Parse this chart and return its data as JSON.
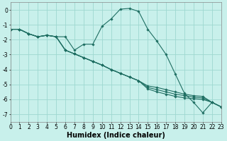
{
  "xlabel": "Humidex (Indice chaleur)",
  "bg_color": "#c8f0eb",
  "grid_color": "#9dd8d0",
  "line_color": "#1e6e62",
  "series": [
    {
      "x": [
        0,
        1,
        2,
        3,
        4,
        5,
        6,
        7,
        8,
        9,
        10,
        11,
        12,
        13,
        14,
        15,
        16,
        17,
        18,
        19,
        20,
        21,
        22,
        23
      ],
      "y": [
        -1.3,
        -1.3,
        -1.6,
        -1.8,
        -1.7,
        -1.8,
        -1.8,
        -2.7,
        -2.3,
        -2.3,
        -1.1,
        -0.6,
        0.05,
        0.1,
        -0.1,
        -1.3,
        -2.1,
        -3.0,
        -4.3,
        -5.6,
        -6.2,
        -6.9,
        -6.2,
        -6.5
      ]
    },
    {
      "x": [
        0,
        1,
        2,
        3,
        4,
        5,
        6,
        7,
        8,
        9,
        10,
        11,
        12,
        13,
        14,
        15,
        16,
        17,
        18,
        19,
        20,
        21,
        22,
        23
      ],
      "y": [
        -1.3,
        -1.3,
        -1.6,
        -1.8,
        -1.7,
        -1.8,
        -2.7,
        -2.95,
        -3.2,
        -3.45,
        -3.7,
        -4.0,
        -4.25,
        -4.5,
        -4.75,
        -5.1,
        -5.2,
        -5.35,
        -5.5,
        -5.65,
        -5.75,
        -5.8,
        -6.2,
        -6.5
      ]
    },
    {
      "x": [
        0,
        1,
        2,
        3,
        4,
        5,
        6,
        7,
        8,
        9,
        10,
        11,
        12,
        13,
        14,
        15,
        16,
        17,
        18,
        19,
        20,
        21,
        22,
        23
      ],
      "y": [
        -1.3,
        -1.3,
        -1.6,
        -1.8,
        -1.7,
        -1.8,
        -2.7,
        -2.95,
        -3.2,
        -3.45,
        -3.7,
        -4.0,
        -4.25,
        -4.5,
        -4.75,
        -5.2,
        -5.35,
        -5.5,
        -5.65,
        -5.75,
        -5.85,
        -5.9,
        -6.2,
        -6.5
      ]
    },
    {
      "x": [
        0,
        1,
        2,
        3,
        4,
        5,
        6,
        7,
        8,
        9,
        10,
        11,
        12,
        13,
        14,
        15,
        16,
        17,
        18,
        19,
        20,
        21,
        22,
        23
      ],
      "y": [
        -1.3,
        -1.3,
        -1.6,
        -1.8,
        -1.7,
        -1.8,
        -2.7,
        -2.95,
        -3.2,
        -3.45,
        -3.7,
        -4.0,
        -4.25,
        -4.5,
        -4.75,
        -5.3,
        -5.5,
        -5.65,
        -5.8,
        -5.9,
        -5.95,
        -6.0,
        -6.2,
        -6.5
      ]
    }
  ],
  "xlim": [
    0,
    23
  ],
  "ylim": [
    -7.5,
    0.5
  ],
  "ytick_labels": [
    "0",
    "-1",
    "-2",
    "-3",
    "-4",
    "-5",
    "-6",
    "-7"
  ],
  "ytick_vals": [
    0,
    -1,
    -2,
    -3,
    -4,
    -5,
    -6,
    -7
  ],
  "xtick_vals": [
    0,
    1,
    2,
    3,
    4,
    5,
    6,
    7,
    8,
    9,
    10,
    11,
    12,
    13,
    14,
    15,
    16,
    17,
    18,
    19,
    20,
    21,
    22,
    23
  ],
  "tick_fontsize": 5.5,
  "xlabel_fontsize": 7.0,
  "marker": "D",
  "marker_size": 1.8,
  "linewidth": 0.8
}
